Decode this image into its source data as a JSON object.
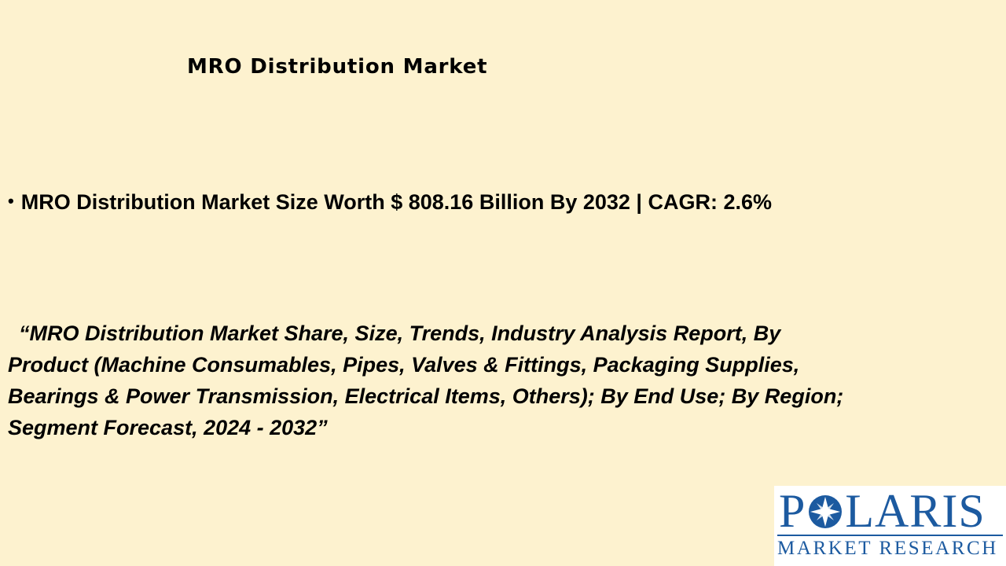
{
  "header": {
    "title": "MRO Distribution Market"
  },
  "bullet": {
    "text": "MRO Distribution Market Size Worth $ 808.16 Billion By 2032 | CAGR: 2.6%"
  },
  "quote": {
    "lines": [
      "“MRO Distribution Market Share, Size, Trends, Industry Analysis Report, By",
      "Product (Machine Consumables, Pipes, Valves & Fittings, Packaging Supplies,",
      "Bearings & Power Transmission, Electrical Items, Others); By End Use; By Region;",
      "Segment Forecast, 2024 - 2032”"
    ]
  },
  "logo": {
    "wordmark_start": "P",
    "wordmark_end": "LARIS",
    "tagline": "MARKET RESEARCH"
  }
}
